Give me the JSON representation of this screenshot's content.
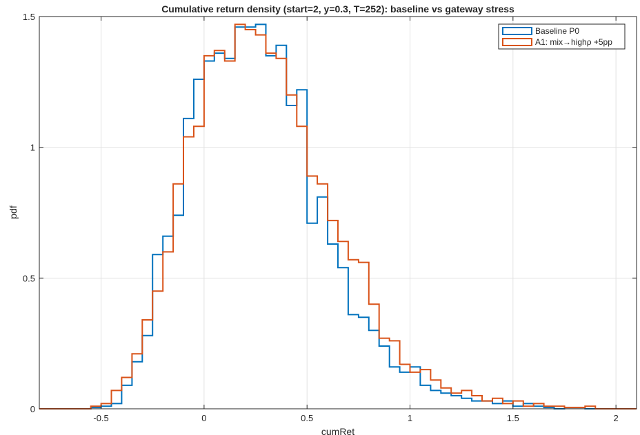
{
  "chart_data": {
    "type": "histogram-stairs",
    "title": "Cumulative return density (start=2, y=0.3, T=252): baseline vs gateway stress",
    "xlabel": "cumRet",
    "ylabel": "pdf",
    "xlim": [
      -0.8,
      2.1
    ],
    "ylim": [
      0,
      1.5
    ],
    "xticks": [
      -0.5,
      0,
      0.5,
      1,
      1.5,
      2
    ],
    "xtick_labels": [
      "-0.5",
      "0",
      "0.5",
      "1",
      "1.5",
      "2"
    ],
    "yticks": [
      0,
      0.5,
      1,
      1.5
    ],
    "ytick_labels": [
      "0",
      "0.5",
      "1",
      "1.5"
    ],
    "grid": true,
    "legend_location": "top-right",
    "bin_edges_start": -0.8,
    "bin_width": 0.05,
    "series": [
      {
        "name": "Baseline P0",
        "color": "#0072BD",
        "values": [
          0,
          0,
          0,
          0,
          0,
          0.005,
          0.01,
          0.02,
          0.09,
          0.18,
          0.28,
          0.59,
          0.66,
          0.74,
          1.11,
          1.26,
          1.33,
          1.36,
          1.34,
          1.46,
          1.46,
          1.47,
          1.35,
          1.39,
          1.16,
          1.22,
          0.71,
          0.81,
          0.63,
          0.54,
          0.36,
          0.35,
          0.3,
          0.24,
          0.16,
          0.14,
          0.16,
          0.09,
          0.07,
          0.06,
          0.05,
          0.04,
          0.03,
          0.03,
          0.02,
          0.03,
          0.01,
          0.02,
          0.01,
          0.005,
          0,
          0.005,
          0.005,
          0,
          0,
          0,
          0,
          0
        ]
      },
      {
        "name": "A1: mix→highρ +5pp",
        "color": "#D95319",
        "values": [
          0,
          0,
          0,
          0,
          0,
          0.01,
          0.02,
          0.07,
          0.12,
          0.21,
          0.34,
          0.45,
          0.6,
          0.86,
          1.04,
          1.08,
          1.35,
          1.37,
          1.33,
          1.47,
          1.45,
          1.43,
          1.36,
          1.34,
          1.2,
          1.08,
          0.89,
          0.86,
          0.72,
          0.64,
          0.57,
          0.56,
          0.4,
          0.27,
          0.26,
          0.17,
          0.14,
          0.15,
          0.11,
          0.08,
          0.06,
          0.07,
          0.05,
          0.03,
          0.04,
          0.02,
          0.03,
          0.01,
          0.02,
          0.01,
          0.01,
          0.005,
          0.005,
          0.01,
          0,
          0,
          0,
          0
        ]
      }
    ]
  }
}
